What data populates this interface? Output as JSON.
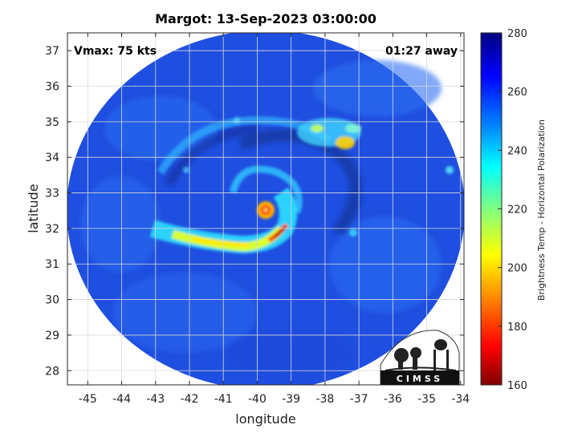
{
  "chart_data": {
    "type": "heatmap",
    "title": "Margot: 13-Sep-2023 03:00:00",
    "xlabel": "longitude",
    "ylabel": "latitude",
    "xlim": [
      -45.6,
      -33.9
    ],
    "ylim": [
      27.6,
      37.5
    ],
    "x_ticks": [
      -45,
      -44,
      -43,
      -42,
      -41,
      -40,
      -39,
      -38,
      -37,
      -36,
      -35,
      -34
    ],
    "y_ticks": [
      28,
      29,
      30,
      31,
      32,
      33,
      34,
      35,
      36,
      37
    ],
    "grid": true,
    "colorbar": {
      "label": "Brightness Temp - Horizontal Polarization",
      "min": 160,
      "max": 280,
      "ticks": [
        160,
        180,
        200,
        220,
        240,
        260,
        280
      ],
      "colormap": "jet",
      "stops": [
        "#800000",
        "#ff0000",
        "#ff8000",
        "#ffff00",
        "#80ff80",
        "#00ffff",
        "#0080ff",
        "#0000ff",
        "#000080"
      ]
    },
    "storm_center": {
      "lon": -40.2,
      "lat": 32.5
    },
    "annotations": {
      "vmax": "Vmax: 75 kts",
      "time_offset": "01:27 away"
    }
  },
  "logo": {
    "text": "CIMSS"
  },
  "colors": {
    "background": "#ffffff",
    "scene_base": "#1f4fe0",
    "axis": "#262626",
    "grid": "#d9d9d9"
  }
}
